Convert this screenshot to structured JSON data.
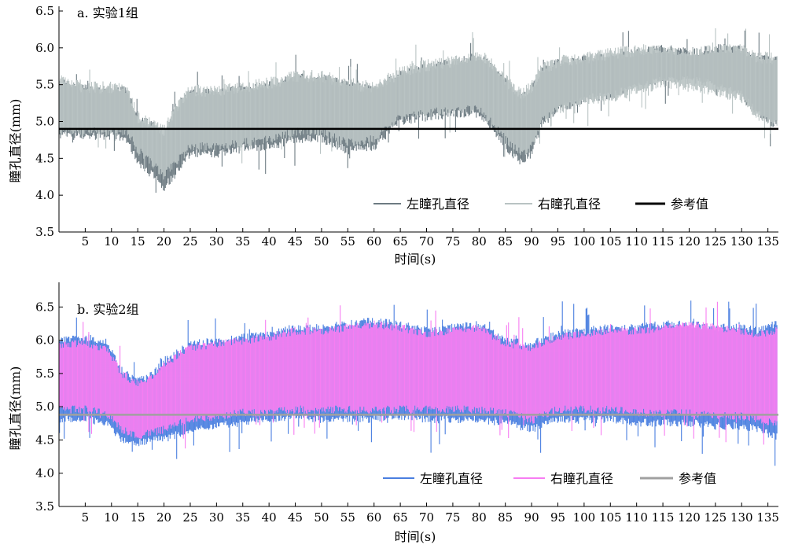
{
  "chart_data": [
    {
      "type": "line",
      "title": "a. 实验1组",
      "xlabel": "时间(s)",
      "ylabel": "瞳孔直径(mm)",
      "xlim": [
        0,
        137
      ],
      "ylim": [
        3.5,
        6.5
      ],
      "yticks": [
        "3.5",
        "4.0",
        "4.5",
        "5.0",
        "5.5",
        "6.0",
        "6.5"
      ],
      "xticks": [
        "5",
        "10",
        "15",
        "20",
        "25",
        "30",
        "35",
        "40",
        "45",
        "50",
        "55",
        "60",
        "65",
        "70",
        "75",
        "80",
        "85",
        "90",
        "95",
        "100",
        "105",
        "110",
        "115",
        "120",
        "125",
        "130",
        "135"
      ],
      "legend_position": "bottom-right",
      "series": [
        {
          "name": "左瞳孔直径",
          "color": "#6d7b82",
          "x": [
            0,
            5,
            10,
            13,
            15,
            18,
            20,
            23,
            25,
            30,
            35,
            40,
            45,
            50,
            55,
            60,
            65,
            70,
            75,
            80,
            82,
            85,
            88,
            90,
            92,
            95,
            100,
            105,
            110,
            115,
            120,
            125,
            130,
            133,
            136
          ],
          "upper": [
            5.6,
            5.5,
            5.5,
            5.5,
            5.1,
            5.0,
            4.9,
            5.3,
            5.45,
            5.45,
            5.5,
            5.55,
            5.65,
            5.65,
            5.55,
            5.5,
            5.7,
            5.8,
            5.85,
            5.95,
            5.85,
            5.6,
            5.4,
            5.5,
            5.75,
            5.85,
            5.9,
            5.95,
            6.0,
            6.05,
            6.0,
            6.05,
            6.05,
            5.9,
            5.9
          ],
          "lower": [
            4.75,
            4.75,
            4.75,
            4.7,
            4.4,
            4.2,
            4.05,
            4.3,
            4.5,
            4.5,
            4.6,
            4.6,
            4.7,
            4.7,
            4.55,
            4.6,
            4.95,
            5.0,
            5.05,
            5.05,
            4.9,
            4.6,
            4.4,
            4.5,
            4.9,
            5.1,
            5.25,
            5.3,
            5.4,
            5.5,
            5.5,
            5.45,
            5.3,
            5.05,
            4.9
          ]
        },
        {
          "name": "右瞳孔直径",
          "color": "#b9c3c3",
          "x": [
            0,
            5,
            10,
            13,
            15,
            18,
            20,
            23,
            25,
            30,
            35,
            40,
            45,
            50,
            55,
            60,
            65,
            70,
            75,
            80,
            82,
            85,
            88,
            90,
            92,
            95,
            100,
            105,
            110,
            115,
            120,
            125,
            130,
            133,
            136
          ],
          "upper": [
            5.65,
            5.55,
            5.55,
            5.5,
            5.15,
            5.05,
            4.95,
            5.35,
            5.5,
            5.5,
            5.55,
            5.6,
            5.7,
            5.7,
            5.6,
            5.55,
            5.75,
            5.85,
            5.9,
            5.95,
            5.9,
            5.65,
            5.45,
            5.55,
            5.8,
            5.9,
            5.95,
            6.0,
            6.05,
            6.05,
            6.0,
            6.05,
            6.05,
            5.95,
            5.95
          ],
          "lower": [
            4.8,
            4.8,
            4.8,
            4.8,
            4.55,
            4.35,
            4.2,
            4.45,
            4.6,
            4.6,
            4.65,
            4.7,
            4.8,
            4.8,
            4.65,
            4.7,
            5.0,
            5.05,
            5.1,
            5.1,
            4.95,
            4.7,
            4.5,
            4.6,
            4.95,
            5.1,
            5.2,
            5.25,
            5.35,
            5.45,
            5.4,
            5.35,
            5.25,
            5.0,
            4.9
          ]
        },
        {
          "name": "参考值",
          "color": "#000000",
          "value": 4.9
        }
      ]
    },
    {
      "type": "line",
      "title": "b. 实验2组",
      "xlabel": "时间(s)",
      "ylabel": "瞳孔直径(mm)",
      "xlim": [
        0,
        137
      ],
      "ylim": [
        3.5,
        6.8
      ],
      "yticks": [
        "3.5",
        "4.0",
        "4.5",
        "5.0",
        "5.5",
        "6.0",
        "6.5"
      ],
      "xticks": [
        "5",
        "10",
        "15",
        "20",
        "25",
        "30",
        "35",
        "40",
        "45",
        "50",
        "55",
        "60",
        "65",
        "70",
        "75",
        "80",
        "85",
        "90",
        "95",
        "100",
        "105",
        "110",
        "115",
        "120",
        "125",
        "130",
        "135"
      ],
      "legend_position": "bottom-right",
      "series": [
        {
          "name": "左瞳孔直径",
          "color": "#4a7fe0",
          "x": [
            0,
            5,
            9,
            12,
            15,
            18,
            20,
            25,
            30,
            35,
            40,
            45,
            50,
            55,
            60,
            65,
            70,
            75,
            80,
            85,
            90,
            95,
            100,
            105,
            110,
            115,
            120,
            125,
            130,
            133,
            136
          ],
          "upper": [
            6.05,
            6.1,
            6.05,
            5.6,
            5.45,
            5.55,
            5.75,
            6.0,
            6.05,
            6.1,
            6.15,
            6.25,
            6.25,
            6.3,
            6.35,
            6.3,
            6.2,
            6.25,
            6.3,
            6.05,
            6.0,
            6.15,
            6.2,
            6.25,
            6.25,
            6.3,
            6.3,
            6.25,
            6.25,
            6.2,
            6.3
          ],
          "lower": [
            4.75,
            4.75,
            4.7,
            4.45,
            4.4,
            4.45,
            4.45,
            4.6,
            4.65,
            4.7,
            4.75,
            4.8,
            4.75,
            4.75,
            4.75,
            4.8,
            4.75,
            4.75,
            4.75,
            4.7,
            4.6,
            4.75,
            4.75,
            4.75,
            4.7,
            4.7,
            4.7,
            4.65,
            4.65,
            4.6,
            4.5
          ]
        },
        {
          "name": "右瞳孔直径",
          "color": "#f77df2",
          "x": [
            0,
            5,
            9,
            12,
            15,
            18,
            20,
            25,
            30,
            35,
            40,
            45,
            50,
            55,
            60,
            65,
            70,
            75,
            80,
            85,
            90,
            95,
            100,
            105,
            110,
            115,
            120,
            125,
            130,
            133,
            136
          ],
          "upper": [
            6.0,
            6.0,
            5.95,
            5.55,
            5.4,
            5.5,
            5.7,
            5.95,
            6.0,
            6.05,
            6.1,
            6.2,
            6.2,
            6.25,
            6.3,
            6.25,
            6.15,
            6.2,
            6.25,
            6.0,
            5.95,
            6.1,
            6.15,
            6.2,
            6.2,
            6.25,
            6.3,
            6.25,
            6.2,
            6.15,
            6.2
          ],
          "lower": [
            4.9,
            4.9,
            4.85,
            4.6,
            4.5,
            4.55,
            4.6,
            4.75,
            4.8,
            4.85,
            4.85,
            4.9,
            4.9,
            4.9,
            4.9,
            4.9,
            4.9,
            4.9,
            4.9,
            4.85,
            4.75,
            4.9,
            4.9,
            4.9,
            4.85,
            4.85,
            4.85,
            4.8,
            4.8,
            4.75,
            4.7
          ]
        },
        {
          "name": "参考值",
          "color": "#a0a0a0",
          "value": 4.88
        }
      ]
    }
  ]
}
